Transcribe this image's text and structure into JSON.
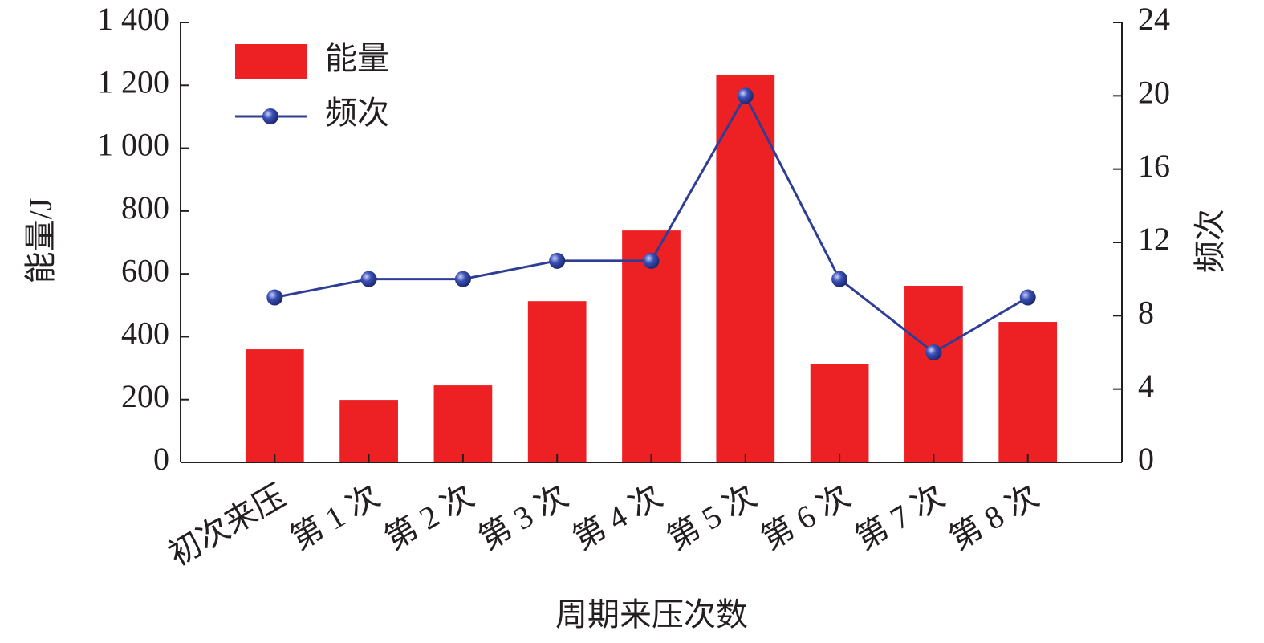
{
  "chart_data": {
    "type": "bar-line",
    "x_label": "周期来压次数",
    "y_label": "能量/J",
    "y2_label": "频次",
    "categories": [
      "初次来压",
      "第 1 次",
      "第 2 次",
      "第 3 次",
      "第 4 次",
      "第 5 次",
      "第 6 次",
      "第 7 次",
      "第 8 次"
    ],
    "series": [
      {
        "name": "能量",
        "type": "bar",
        "color": "#ed2024",
        "values": [
          360,
          199,
          245,
          513,
          738,
          1234,
          314,
          562,
          447
        ]
      },
      {
        "name": "频次",
        "type": "line",
        "axis": "y2",
        "color": "#2e3e96",
        "values": [
          9,
          10,
          10,
          11,
          11,
          20,
          10,
          6,
          9
        ]
      }
    ],
    "ylim": [
      0,
      1400
    ],
    "yticks": [
      0,
      200,
      400,
      600,
      800,
      {
        "value": 1000,
        "label": "1 000"
      },
      {
        "value": 1200,
        "label": "1 200"
      },
      {
        "value": 1400,
        "label": "1 400"
      }
    ],
    "y2lim": [
      0,
      24
    ],
    "y2ticks": [
      0,
      4,
      8,
      12,
      16,
      20,
      24
    ],
    "legend": "top-left"
  }
}
